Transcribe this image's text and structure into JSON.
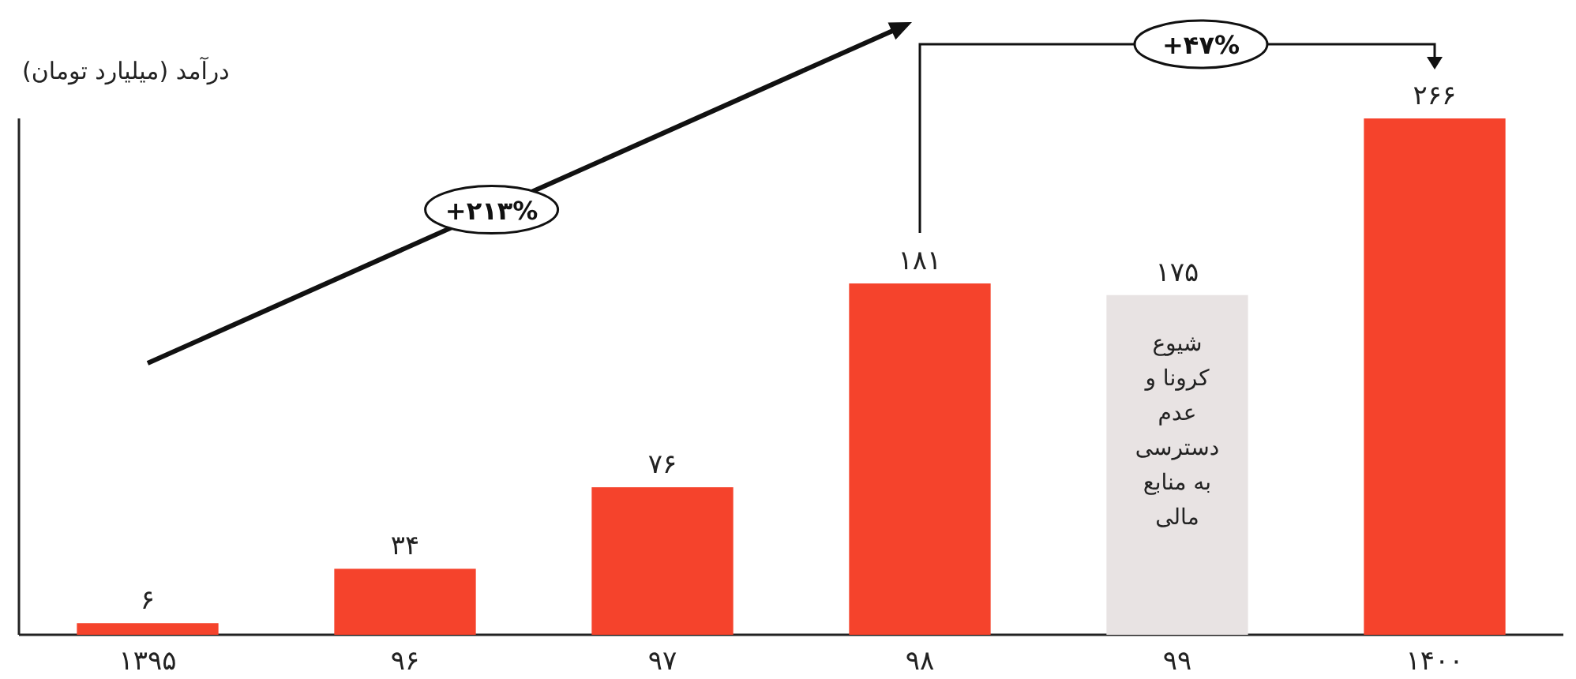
{
  "chart_data": {
    "type": "bar",
    "ylabel": "درآمد (میلیارد تومان)",
    "categories": [
      "۱۳۹۵",
      "۹۶",
      "۹۷",
      "۹۸",
      "۹۹",
      "۱۴۰۰"
    ],
    "values": [
      6,
      34,
      76,
      181,
      175,
      266
    ],
    "value_labels": [
      "۶",
      "۳۴",
      "۷۶",
      "۱۸۱",
      "۱۷۵",
      "۲۶۶"
    ],
    "colors": [
      "#f5432c",
      "#f5432c",
      "#f5432c",
      "#f5432c",
      "#e8e3e3",
      "#f5432c"
    ],
    "annotations": [
      "+۲۱۳%",
      "+۴۷%",
      "شیوع کرونا و عدم دسترسی به منابع مالی"
    ]
  }
}
